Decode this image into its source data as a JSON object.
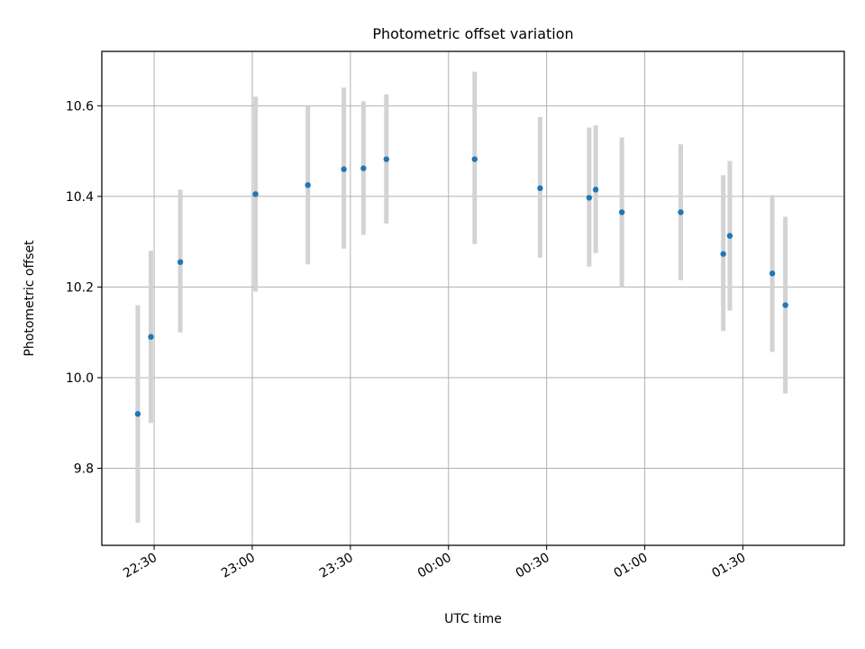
{
  "chart_data": {
    "type": "scatter",
    "title": "Photometric offset variation",
    "xlabel": "UTC time",
    "ylabel": "Photometric offset",
    "xlim": [
      "22:14",
      "02:01"
    ],
    "ylim": [
      9.63,
      10.72
    ],
    "grid": true,
    "colors": {
      "point": "#1f77b4",
      "error_bar": "#d3d3d3",
      "grid": "#b0b0b0"
    },
    "x_ticks": [
      "22:30",
      "23:00",
      "23:30",
      "00:00",
      "00:30",
      "01:00",
      "01:30"
    ],
    "y_ticks": [
      "9.8",
      "10.0",
      "10.2",
      "10.4",
      "10.6"
    ],
    "points": [
      {
        "x": "22:25",
        "y": 9.92,
        "y_low": 9.68,
        "y_high": 10.16
      },
      {
        "x": "22:29",
        "y": 10.09,
        "y_low": 9.9,
        "y_high": 10.28
      },
      {
        "x": "22:38",
        "y": 10.255,
        "y_low": 10.1,
        "y_high": 10.415
      },
      {
        "x": "23:01",
        "y": 10.405,
        "y_low": 10.19,
        "y_high": 10.62
      },
      {
        "x": "23:17",
        "y": 10.425,
        "y_low": 10.25,
        "y_high": 10.6
      },
      {
        "x": "23:28",
        "y": 10.46,
        "y_low": 10.285,
        "y_high": 10.64
      },
      {
        "x": "23:34",
        "y": 10.462,
        "y_low": 10.315,
        "y_high": 10.61
      },
      {
        "x": "23:41",
        "y": 10.482,
        "y_low": 10.34,
        "y_high": 10.625
      },
      {
        "x": "00:08",
        "y": 10.482,
        "y_low": 10.295,
        "y_high": 10.675
      },
      {
        "x": "00:28",
        "y": 10.418,
        "y_low": 10.265,
        "y_high": 10.575
      },
      {
        "x": "00:43",
        "y": 10.397,
        "y_low": 10.245,
        "y_high": 10.552
      },
      {
        "x": "00:45",
        "y": 10.415,
        "y_low": 10.275,
        "y_high": 10.557
      },
      {
        "x": "00:53",
        "y": 10.365,
        "y_low": 10.2,
        "y_high": 10.53
      },
      {
        "x": "01:11",
        "y": 10.365,
        "y_low": 10.215,
        "y_high": 10.515
      },
      {
        "x": "01:24",
        "y": 10.273,
        "y_low": 10.103,
        "y_high": 10.447
      },
      {
        "x": "01:26",
        "y": 10.313,
        "y_low": 10.148,
        "y_high": 10.478
      },
      {
        "x": "01:39",
        "y": 10.23,
        "y_low": 10.057,
        "y_high": 10.403
      },
      {
        "x": "01:43",
        "y": 10.16,
        "y_low": 9.965,
        "y_high": 10.355
      }
    ]
  }
}
